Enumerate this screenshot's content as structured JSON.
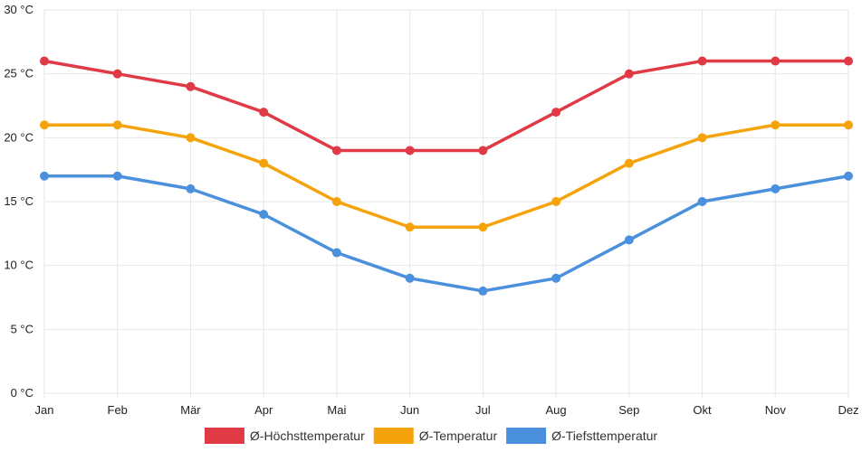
{
  "chart_data": {
    "type": "line",
    "title": "",
    "xlabel": "",
    "ylabel": "",
    "categories": [
      "Jan",
      "Feb",
      "Mär",
      "Apr",
      "Mai",
      "Jun",
      "Jul",
      "Aug",
      "Sep",
      "Okt",
      "Nov",
      "Dez"
    ],
    "ylim": [
      0,
      30
    ],
    "yticks": [
      0,
      5,
      10,
      15,
      20,
      25,
      30
    ],
    "yunit": " °C",
    "grid": true,
    "legend_position": "bottom-center",
    "series": [
      {
        "name": "Ø-Höchsttemperatur",
        "color": "#e03a46",
        "values": [
          26,
          25,
          24,
          22,
          19,
          19,
          19,
          22,
          25,
          26,
          26,
          26
        ]
      },
      {
        "name": "Ø-Temperatur",
        "color": "#f5a30a",
        "values": [
          21,
          21,
          20,
          18,
          15,
          13,
          13,
          15,
          18,
          20,
          21,
          21
        ]
      },
      {
        "name": "Ø-Tiefsttemperatur",
        "color": "#4a90dc",
        "values": [
          17,
          17,
          16,
          14,
          11,
          9,
          8,
          9,
          12,
          15,
          16,
          17
        ]
      }
    ]
  }
}
